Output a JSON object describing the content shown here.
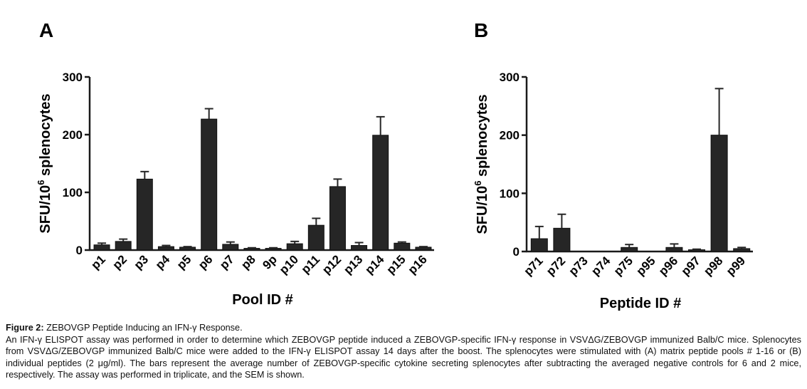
{
  "chart_data": [
    {
      "type": "bar",
      "panel": "A",
      "ylabel_main": "SFU/10",
      "ylabel_sup": "6",
      "ylabel_rest": " splenocytes",
      "xlabel": "Pool ID #",
      "ylim": [
        0,
        300
      ],
      "yticks": [
        0,
        100,
        200,
        300
      ],
      "categories": [
        "p1",
        "p2",
        "p3",
        "p4",
        "p5",
        "p6",
        "p7",
        "p8",
        "9p",
        "p10",
        "p11",
        "p12",
        "p13",
        "p14",
        "p15",
        "p16"
      ],
      "values": [
        9,
        15,
        123,
        6,
        5,
        227,
        10,
        3,
        3,
        11,
        43,
        110,
        8,
        199,
        12,
        5
      ],
      "errors": [
        3,
        4,
        13,
        2,
        1,
        18,
        4,
        1,
        1,
        4,
        12,
        13,
        5,
        32,
        2,
        1
      ]
    },
    {
      "type": "bar",
      "panel": "B",
      "ylabel_main": "SFU/10",
      "ylabel_sup": "6",
      "ylabel_rest": " splenocytes",
      "xlabel": "Peptide ID #",
      "ylim": [
        0,
        300
      ],
      "yticks": [
        0,
        100,
        200,
        300
      ],
      "categories": [
        "p71",
        "p72",
        "p73",
        "p74",
        "p75",
        "p95",
        "p96",
        "p97",
        "p98",
        "p99"
      ],
      "values": [
        22,
        40,
        0,
        0,
        7,
        0,
        7,
        3,
        200,
        5
      ],
      "errors": [
        21,
        24,
        0,
        0,
        5,
        0,
        6,
        1,
        80,
        2
      ]
    }
  ],
  "caption": {
    "label": "Figure 2:",
    "title": " ZEBOVGP Peptide Inducing an IFN-γ Response.",
    "body": "An IFN-γ ELISPOT assay was performed in order to determine which ZEBOVGP peptide induced a ZEBOVGP-specific IFN-γ response in VSVΔG/ZEBOVGP immunized Balb/C mice. Splenocytes from VSVΔG/ZEBOVGP immunized Balb/C mice were added to the IFN-γ ELISPOT assay 14 days after the boost. The splenocytes were stimulated with (A) matrix peptide pools # 1-16 or (B) individual peptides (2 μg/ml). The bars represent the average number of ZEBOVGP-specific cytokine secreting splenocytes after subtracting the averaged negative controls for 6 and 2 mice, respectively. The assay was performed in triplicate, and the SEM is shown."
  }
}
